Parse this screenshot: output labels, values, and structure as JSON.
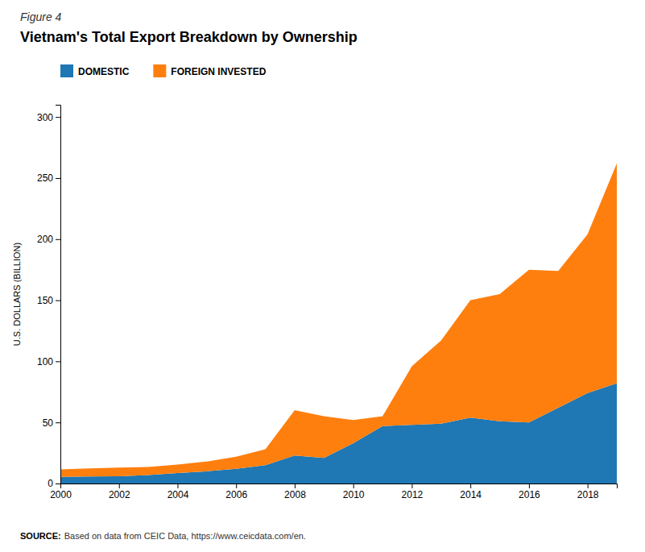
{
  "chart_data": {
    "type": "area",
    "stacked": true,
    "title": "Vietnam's Total Export Breakdown by Ownership",
    "ylabel": "U.S. DOLLARS (BILLION)",
    "annotations": [
      "Figure 4",
      "SOURCE:",
      "Based on data from CEIC Data, https://www.ceicdata.com/en."
    ],
    "x": [
      2000,
      2001,
      2002,
      2003,
      2004,
      2005,
      2006,
      2007,
      2008,
      2009,
      2010,
      2011,
      2012,
      2013,
      2014,
      2015,
      2016,
      2017,
      2018,
      2019
    ],
    "series": [
      {
        "name": "DOMESTIC",
        "values": [
          5.5,
          5.8,
          6.0,
          7.0,
          8.5,
          10.0,
          12.0,
          15.0,
          23.0,
          21.0,
          33.0,
          47.0,
          48.0,
          49.0,
          54.0,
          51.0,
          50.0,
          62.0,
          74.0,
          82.0
        ]
      },
      {
        "name": "FOREIGN INVESTED",
        "values": [
          6.0,
          6.5,
          7.0,
          6.5,
          7.0,
          8.0,
          10.0,
          13.0,
          37.0,
          34.0,
          19.0,
          8.0,
          48.0,
          68.0,
          96.0,
          104.0,
          125.0,
          112.0,
          130.0,
          180.0
        ]
      }
    ],
    "xlim": [
      2000,
      2019
    ],
    "xticks": [
      2000,
      2002,
      2004,
      2006,
      2008,
      2010,
      2012,
      2014,
      2016,
      2018
    ],
    "ylim": [
      0,
      310
    ],
    "yticks": [
      0,
      50,
      100,
      150,
      200,
      250,
      300
    ],
    "grid": false,
    "legend": "top"
  }
}
